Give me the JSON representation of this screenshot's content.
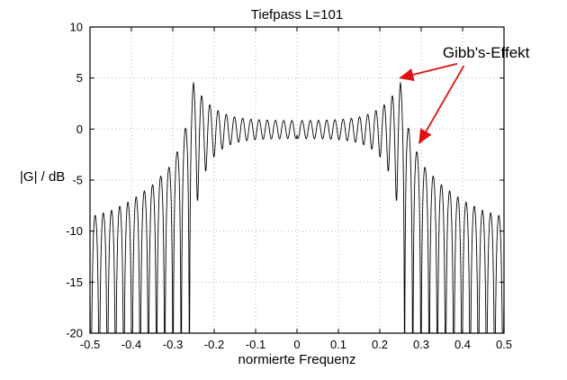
{
  "chart_data": {
    "type": "line",
    "title": "Tiefpass L=101",
    "xlabel": "normierte Frequenz",
    "ylabel": "|G| / dB",
    "xlim": [
      -0.5,
      0.5
    ],
    "ylim": [
      -20,
      10
    ],
    "xtick_values": [
      -0.5,
      -0.4,
      -0.3,
      -0.2,
      -0.1,
      0,
      0.1,
      0.2,
      0.3,
      0.4,
      0.5
    ],
    "xtick_labels": [
      "-0.5",
      "-0.4",
      "-0.3",
      "-0.2",
      "-0.1",
      "0",
      "0.1",
      "0.2",
      "0.3",
      "0.4",
      "0.5"
    ],
    "ytick_values": [
      10,
      5,
      0,
      -5,
      -10,
      -15,
      -20
    ],
    "ytick_labels": [
      "10",
      "5",
      "0",
      "-5",
      "-10",
      "-15",
      "-20"
    ],
    "grid_style": "dotted",
    "grid_color": "#b5b5b5",
    "line_color": "#000000",
    "features": {
      "filter_length": 101,
      "cutoff_normalized_frequency": 0.25,
      "passband_level_db": 0,
      "peak_overshoot_db": 4.5,
      "ripple_spacing_normalized_freq": 0.0198,
      "stopband_nulls_reach_db": -20,
      "stopband_peak_envelope_at_half_db": -8.6
    },
    "model": {
      "description": "FIR lowpass magnitude response with Gibbs ripple, symmetric about f=0",
      "fc": 0.25,
      "ripple_period": 0.0198,
      "pass_ripple_base": 0.1,
      "pass_ripple_edge": 0.58,
      "pass_growth": 0.04,
      "stopband_envelope_db": [
        [
          0.25,
          4.5
        ],
        [
          0.262,
          1.2
        ],
        [
          0.28,
          -1.5
        ],
        [
          0.31,
          -3.8
        ],
        [
          0.35,
          -5.5
        ],
        [
          0.4,
          -7.0
        ],
        [
          0.45,
          -8.0
        ],
        [
          0.5,
          -8.6
        ]
      ],
      "clip_db": -20
    },
    "annotation": {
      "text": "Gibb's-Effekt",
      "color": "#e01010",
      "text_pos": [
        0.352,
        7.0
      ],
      "arrows": [
        {
          "from": [
            0.387,
            6.4
          ],
          "to": [
            0.248,
            5.0
          ]
        },
        {
          "from": [
            0.403,
            6.2
          ],
          "to": [
            0.295,
            -1.4
          ]
        }
      ]
    }
  }
}
